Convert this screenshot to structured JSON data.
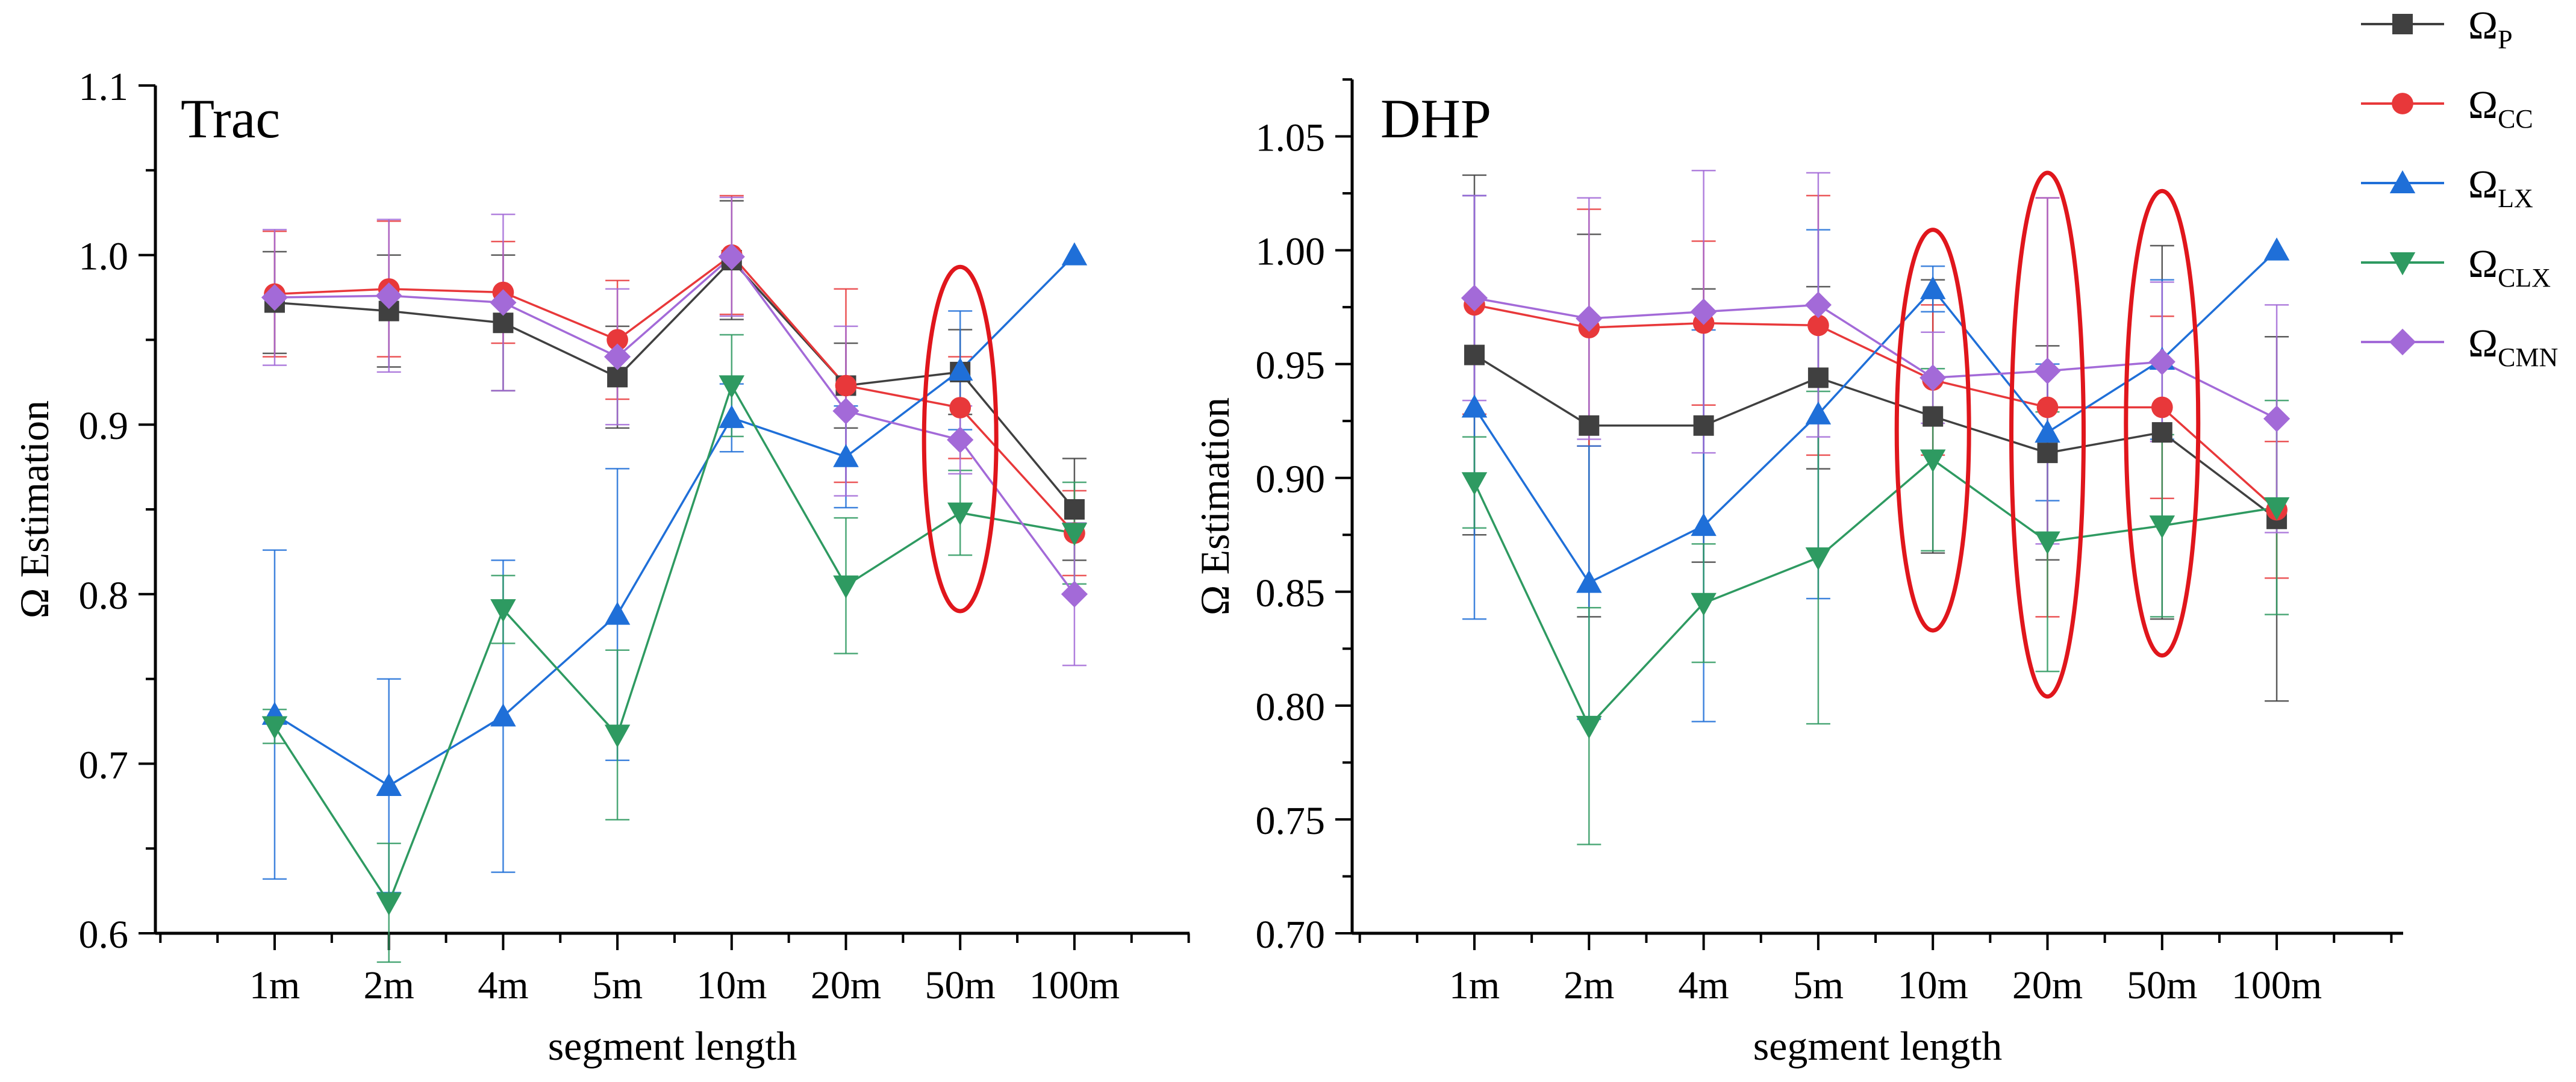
{
  "chart_data": [
    {
      "type": "line",
      "title": "Trac",
      "xlabel": "segment length",
      "ylabel": "Ω Estimation",
      "categories": [
        "1m",
        "2m",
        "4m",
        "5m",
        "10m",
        "20m",
        "50m",
        "100m"
      ],
      "ylim": [
        0.6,
        1.1
      ],
      "yticks": [
        "0.6",
        "0.7",
        "0.8",
        "0.9",
        "1.0",
        "1.1"
      ],
      "series": [
        {
          "name": "P",
          "values": [
            0.972,
            0.967,
            0.96,
            0.928,
            0.997,
            0.923,
            0.931,
            0.85
          ],
          "errors": [
            0.03,
            0.033,
            0.04,
            0.03,
            0.035,
            0.025,
            0.025,
            0.03
          ]
        },
        {
          "name": "CC",
          "values": [
            0.977,
            0.98,
            0.978,
            0.95,
            1.0,
            0.923,
            0.91,
            0.836
          ],
          "errors": [
            0.037,
            0.04,
            0.03,
            0.035,
            0.035,
            0.057,
            0.03,
            0.025
          ]
        },
        {
          "name": "LX",
          "values": [
            0.729,
            0.687,
            0.728,
            0.788,
            0.904,
            0.881,
            0.932,
            1.0
          ],
          "errors": [
            0.097,
            0.063,
            0.092,
            0.086,
            0.02,
            0.03,
            0.035,
            0.0
          ]
        },
        {
          "name": "CLX",
          "values": [
            0.722,
            0.618,
            0.791,
            0.717,
            0.923,
            0.805,
            0.848,
            0.836
          ],
          "errors": [
            0.01,
            0.035,
            0.02,
            0.05,
            0.03,
            0.04,
            0.025,
            0.03
          ]
        },
        {
          "name": "CMN",
          "values": [
            0.975,
            0.976,
            0.972,
            0.94,
            0.999,
            0.908,
            0.891,
            0.8
          ],
          "errors": [
            0.04,
            0.045,
            0.052,
            0.04,
            0.035,
            0.05,
            0.02,
            0.042
          ]
        }
      ],
      "ellipses": [
        {
          "category": "50m",
          "ymin": 0.79,
          "ymax": 0.993
        }
      ]
    },
    {
      "type": "line",
      "title": "DHP",
      "xlabel": "segment length",
      "ylabel": "Ω Estimation",
      "categories": [
        "1m",
        "2m",
        "4m",
        "5m",
        "10m",
        "20m",
        "50m",
        "100m"
      ],
      "ylim": [
        0.7,
        1.075
      ],
      "yticks": [
        "0.70",
        "0.75",
        "0.80",
        "0.85",
        "0.90",
        "0.95",
        "1.00",
        "1.05"
      ],
      "series": [
        {
          "name": "P",
          "values": [
            0.954,
            0.923,
            0.923,
            0.944,
            0.927,
            0.911,
            0.92,
            0.882
          ],
          "errors": [
            0.079,
            0.084,
            0.06,
            0.04,
            0.06,
            0.047,
            0.082,
            0.08
          ]
        },
        {
          "name": "CC",
          "values": [
            0.976,
            0.966,
            0.968,
            0.967,
            0.943,
            0.931,
            0.931,
            0.886
          ],
          "errors": [
            0.048,
            0.052,
            0.036,
            0.057,
            0.033,
            0.092,
            0.04,
            0.03
          ]
        },
        {
          "name": "LX",
          "values": [
            0.931,
            0.854,
            0.879,
            0.928,
            0.983,
            0.92,
            0.952,
            1.0
          ],
          "errors": [
            0.093,
            0.06,
            0.086,
            0.081,
            0.01,
            0.03,
            0.035,
            0.0
          ]
        },
        {
          "name": "CLX",
          "values": [
            0.898,
            0.791,
            0.845,
            0.865,
            0.908,
            0.872,
            0.879,
            0.887
          ],
          "errors": [
            0.02,
            0.052,
            0.026,
            0.073,
            0.04,
            0.057,
            0.04,
            0.047
          ]
        },
        {
          "name": "CMN",
          "values": [
            0.979,
            0.97,
            0.973,
            0.976,
            0.944,
            0.947,
            0.951,
            0.926
          ],
          "errors": [
            0.045,
            0.053,
            0.062,
            0.058,
            0.02,
            0.076,
            0.035,
            0.05
          ]
        }
      ],
      "ellipses": [
        {
          "category": "10m",
          "ymin": 0.833,
          "ymax": 1.009
        },
        {
          "category": "20m",
          "ymin": 0.804,
          "ymax": 1.034
        },
        {
          "category": "50m",
          "ymin": 0.822,
          "ymax": 1.026
        }
      ]
    }
  ],
  "legend": {
    "position": "top-right",
    "items": [
      {
        "symbol": "Ω",
        "sub": "P",
        "series": "P",
        "color": "#404040",
        "marker": "square"
      },
      {
        "symbol": "Ω",
        "sub": "CC",
        "series": "CC",
        "color": "#e8383a",
        "marker": "circle"
      },
      {
        "symbol": "Ω",
        "sub": "LX",
        "series": "LX",
        "color": "#1f6fd8",
        "marker": "triangle-up"
      },
      {
        "symbol": "Ω",
        "sub": "CLX",
        "series": "CLX",
        "color": "#2e9a61",
        "marker": "triangle-down"
      },
      {
        "symbol": "Ω",
        "sub": "CMN",
        "series": "CMN",
        "color": "#a36ad8",
        "marker": "diamond"
      }
    ]
  },
  "colors": {
    "P": "#404040",
    "CC": "#e8383a",
    "LX": "#1f6fd8",
    "CLX": "#2e9a61",
    "CMN": "#a36ad8",
    "highlight": "#e0161c"
  }
}
